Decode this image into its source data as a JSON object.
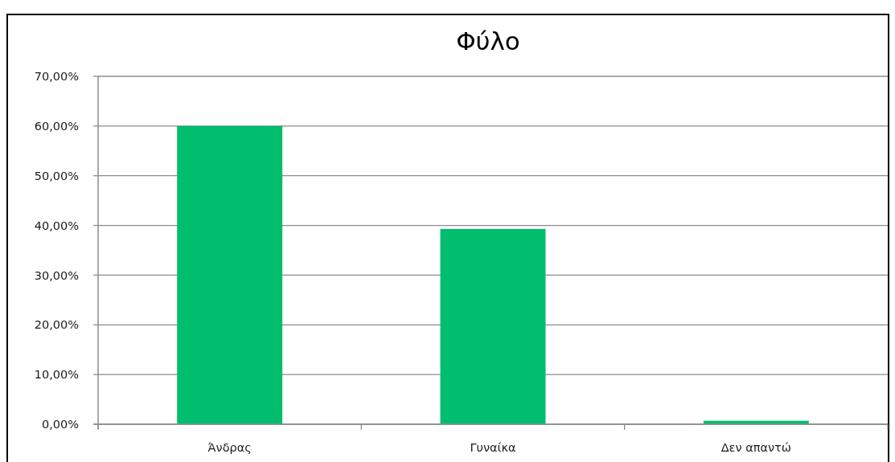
{
  "chart_data": {
    "type": "bar",
    "title": "Φύλο",
    "categories": [
      "Άνδρας",
      "Γυναίκα",
      "Δεν απαντώ"
    ],
    "values": [
      60,
      39.3,
      0.7
    ],
    "color": "#00be6e",
    "ylim": [
      0,
      70
    ],
    "yticks": [
      {
        "value": 0,
        "label": "0,00%"
      },
      {
        "value": 10,
        "label": "10,00%"
      },
      {
        "value": 20,
        "label": "20,00%"
      },
      {
        "value": 30,
        "label": "30,00%"
      },
      {
        "value": 40,
        "label": "40,00%"
      },
      {
        "value": 50,
        "label": "50,00%"
      },
      {
        "value": 60,
        "label": "60,00%"
      },
      {
        "value": 70,
        "label": "70,00%"
      }
    ],
    "grid": "y"
  }
}
